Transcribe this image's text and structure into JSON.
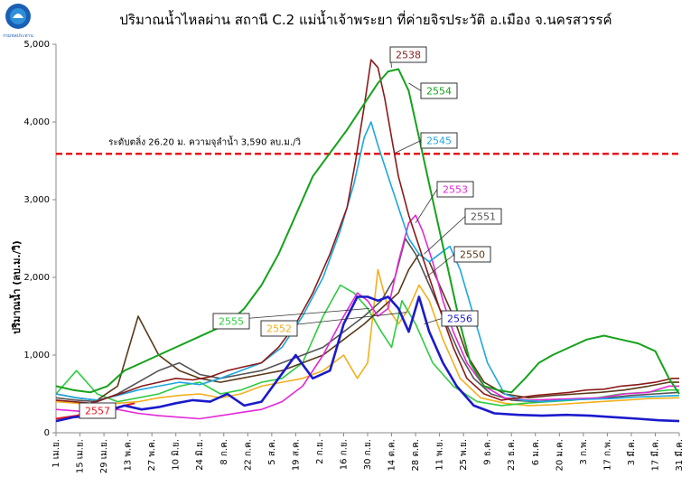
{
  "chart_data": {
    "type": "line",
    "title": "ปริมาณน้ำไหลผ่าน สถานี C.2 แม่น้ำเจ้าพระยา ที่ค่ายจิรประวัติ อ.เมือง จ.นครสวรรค์",
    "ylabel": "ปริมาณน้ำ (ลบ.ม./วิ)",
    "xlabel": "",
    "ylim": [
      0,
      5000
    ],
    "yticks": [
      "0",
      "1,000",
      "2,000",
      "3,000",
      "4,000",
      "5,000"
    ],
    "ytick_values": [
      0,
      1000,
      2000,
      3000,
      4000,
      5000
    ],
    "xticks": [
      "1 เม.ย.",
      "15 เม.ย.",
      "29 เม.ย.",
      "13 พ.ค.",
      "27 พ.ค.",
      "10 มิ.ย.",
      "24 มิ.ย.",
      "8 ก.ค.",
      "22 ก.ค.",
      "5 ส.ค.",
      "19 ส.ค.",
      "2 ก.ย.",
      "16 ก.ย.",
      "30 ก.ย.",
      "14 ต.ค.",
      "28 ต.ค.",
      "11 พ.ย.",
      "25 พ.ย.",
      "9 ธ.ค.",
      "23 ธ.ค.",
      "6 ม.ค.",
      "20 ม.ค.",
      "3 ก.พ.",
      "17 ก.พ.",
      "3 มี.ค.",
      "17 มี.ค.",
      "31 มี.ค."
    ],
    "x_days": [
      0,
      14,
      28,
      42,
      56,
      70,
      84,
      98,
      112,
      126,
      140,
      154,
      168,
      182,
      196,
      210,
      224,
      238,
      252,
      266,
      280,
      294,
      308,
      322,
      336,
      350,
      364
    ],
    "xlim": [
      0,
      364
    ],
    "reference_line": {
      "value": 3590,
      "label": "ระดับตลิ่ง 26.20 ม. ความจุลำน้ำ 3,590 ลบ.ม./วิ",
      "color": "#e8141c"
    },
    "grid": false,
    "series": [
      {
        "name": "2538",
        "color": "#8b1a1a",
        "width": 1.6,
        "x": [
          0,
          10,
          20,
          30,
          40,
          50,
          60,
          70,
          80,
          90,
          100,
          110,
          120,
          130,
          140,
          150,
          160,
          170,
          175,
          180,
          184,
          188,
          192,
          196,
          200,
          206,
          212,
          218,
          224,
          232,
          240,
          250,
          260,
          270,
          280,
          290,
          300,
          310,
          320,
          330,
          340,
          350,
          360,
          364
        ],
        "y": [
          420,
          400,
          380,
          450,
          520,
          600,
          650,
          700,
          680,
          720,
          800,
          850,
          900,
          1100,
          1400,
          1800,
          2300,
          2900,
          3500,
          4200,
          4800,
          4700,
          4300,
          3800,
          3300,
          2800,
          2400,
          2000,
          1600,
          1100,
          700,
          500,
          420,
          450,
          480,
          500,
          520,
          550,
          560,
          600,
          620,
          650,
          700,
          700
        ]
      },
      {
        "name": "2554",
        "color": "#16a21c",
        "width": 2.0,
        "x": [
          0,
          10,
          20,
          30,
          40,
          50,
          60,
          70,
          80,
          90,
          100,
          110,
          120,
          130,
          140,
          150,
          160,
          170,
          176,
          182,
          188,
          194,
          200,
          206,
          212,
          218,
          224,
          230,
          236,
          242,
          250,
          258,
          266,
          274,
          282,
          290,
          300,
          310,
          320,
          330,
          340,
          350,
          358,
          364
        ],
        "y": [
          600,
          550,
          520,
          600,
          800,
          900,
          1000,
          1100,
          1200,
          1300,
          1400,
          1600,
          1900,
          2300,
          2800,
          3300,
          3600,
          3900,
          4100,
          4300,
          4500,
          4650,
          4680,
          4400,
          3800,
          3200,
          2600,
          2000,
          1400,
          900,
          600,
          550,
          520,
          700,
          900,
          1000,
          1100,
          1200,
          1250,
          1200,
          1150,
          1050,
          700,
          500
        ]
      },
      {
        "name": "2545",
        "color": "#1ea7e1",
        "width": 1.6,
        "x": [
          0,
          12,
          24,
          36,
          48,
          60,
          72,
          84,
          96,
          108,
          120,
          132,
          144,
          156,
          166,
          174,
          180,
          184,
          188,
          194,
          200,
          206,
          212,
          218,
          224,
          230,
          236,
          244,
          252,
          262,
          272,
          284,
          296,
          310,
          324,
          338,
          352,
          364
        ],
        "y": [
          500,
          450,
          420,
          480,
          550,
          600,
          650,
          620,
          700,
          800,
          900,
          1100,
          1500,
          2000,
          2600,
          3200,
          3800,
          4000,
          3700,
          3300,
          2900,
          2500,
          2300,
          2200,
          2300,
          2400,
          2100,
          1500,
          900,
          500,
          420,
          400,
          420,
          430,
          440,
          460,
          470,
          480
        ]
      },
      {
        "name": "2553",
        "color": "#e22ad8",
        "width": 1.6,
        "x": [
          0,
          12,
          24,
          36,
          48,
          60,
          72,
          84,
          96,
          108,
          120,
          132,
          144,
          156,
          168,
          176,
          182,
          188,
          194,
          200,
          206,
          210,
          214,
          220,
          226,
          232,
          240,
          250,
          262,
          276,
          290,
          304,
          318,
          332,
          346,
          358,
          364
        ],
        "y": [
          300,
          280,
          260,
          300,
          250,
          220,
          200,
          180,
          220,
          260,
          300,
          400,
          600,
          1000,
          1500,
          1800,
          1700,
          1500,
          1600,
          2200,
          2700,
          2800,
          2600,
          2200,
          1700,
          1300,
          900,
          600,
          450,
          420,
          430,
          440,
          450,
          500,
          520,
          600,
          600
        ]
      },
      {
        "name": "2551",
        "color": "#555555",
        "width": 1.6,
        "x": [
          0,
          12,
          24,
          36,
          48,
          60,
          72,
          84,
          96,
          108,
          120,
          132,
          144,
          156,
          168,
          180,
          190,
          198,
          204,
          210,
          216,
          222,
          228,
          236,
          244,
          254,
          266,
          280,
          294,
          308,
          322,
          336,
          350,
          364
        ],
        "y": [
          450,
          420,
          400,
          500,
          650,
          800,
          900,
          750,
          700,
          750,
          800,
          900,
          1000,
          1100,
          1300,
          1500,
          1700,
          2000,
          2500,
          2300,
          2000,
          1700,
          1400,
          1000,
          700,
          500,
          420,
          400,
          420,
          430,
          450,
          480,
          500,
          520
        ]
      },
      {
        "name": "2550",
        "color": "#5a3a1a",
        "width": 1.6,
        "x": [
          0,
          12,
          24,
          36,
          48,
          60,
          72,
          84,
          96,
          108,
          120,
          132,
          144,
          156,
          168,
          180,
          190,
          200,
          206,
          212,
          218,
          224,
          232,
          240,
          250,
          262,
          276,
          290,
          304,
          318,
          332,
          346,
          358,
          364
        ],
        "y": [
          500,
          450,
          420,
          600,
          1500,
          1000,
          800,
          700,
          650,
          700,
          750,
          800,
          900,
          1000,
          1200,
          1400,
          1600,
          1800,
          2100,
          2300,
          2200,
          1900,
          1500,
          1000,
          650,
          500,
          450,
          480,
          500,
          520,
          550,
          600,
          650,
          650
        ]
      },
      {
        "name": "2552",
        "color": "#f2b01e",
        "width": 1.6,
        "x": [
          0,
          12,
          24,
          36,
          48,
          60,
          72,
          84,
          96,
          108,
          120,
          132,
          144,
          156,
          168,
          176,
          182,
          188,
          194,
          200,
          206,
          212,
          218,
          226,
          236,
          248,
          262,
          276,
          290,
          304,
          318,
          332,
          346,
          364
        ],
        "y": [
          400,
          380,
          350,
          380,
          400,
          450,
          480,
          500,
          450,
          500,
          600,
          650,
          700,
          800,
          1000,
          700,
          900,
          2100,
          1600,
          1400,
          1600,
          1900,
          1700,
          1200,
          700,
          450,
          380,
          350,
          360,
          380,
          400,
          420,
          440,
          450
        ]
      },
      {
        "name": "2555",
        "color": "#2ecc40",
        "width": 1.6,
        "x": [
          0,
          12,
          24,
          36,
          48,
          60,
          72,
          84,
          96,
          108,
          120,
          132,
          144,
          156,
          166,
          174,
          182,
          190,
          196,
          202,
          210,
          220,
          232,
          246,
          260,
          274,
          288,
          302,
          316,
          330,
          344,
          358,
          364
        ],
        "y": [
          500,
          800,
          500,
          400,
          450,
          500,
          600,
          650,
          500,
          550,
          650,
          700,
          900,
          1500,
          1900,
          1800,
          1600,
          1300,
          1100,
          1700,
          1400,
          900,
          600,
          400,
          350,
          380,
          400,
          420,
          450,
          500,
          520,
          550,
          550
        ]
      },
      {
        "name": "2556",
        "color": "#1a1acc",
        "width": 2.6,
        "x": [
          0,
          10,
          20,
          30,
          40,
          50,
          60,
          70,
          80,
          90,
          100,
          110,
          120,
          130,
          140,
          150,
          160,
          168,
          176,
          182,
          188,
          194,
          200,
          206,
          212,
          218,
          226,
          234,
          244,
          256,
          270,
          284,
          298,
          312,
          326,
          340,
          352,
          364
        ],
        "y": [
          150,
          200,
          220,
          280,
          350,
          300,
          330,
          380,
          420,
          400,
          500,
          350,
          400,
          700,
          1000,
          700,
          800,
          1400,
          1750,
          1750,
          1700,
          1750,
          1600,
          1300,
          1750,
          1300,
          900,
          600,
          350,
          250,
          230,
          220,
          230,
          220,
          200,
          180,
          160,
          150
        ]
      },
      {
        "name": "2557",
        "color": "#e8141c",
        "width": 2.0,
        "x": [
          0,
          6,
          12,
          18,
          24,
          30,
          34,
          38,
          42,
          46
        ],
        "y": [
          180,
          200,
          220,
          250,
          280,
          300,
          320,
          340,
          360,
          380
        ]
      }
    ],
    "series_labels": [
      {
        "series": "2538",
        "text": "2538",
        "color": "#8b1a1a"
      },
      {
        "series": "2554",
        "text": "2554",
        "color": "#16a21c"
      },
      {
        "series": "2545",
        "text": "2545",
        "color": "#1ea7e1"
      },
      {
        "series": "2553",
        "text": "2553",
        "color": "#e22ad8"
      },
      {
        "series": "2551",
        "text": "2551",
        "color": "#555555"
      },
      {
        "series": "2550",
        "text": "2550",
        "color": "#5a3a1a"
      },
      {
        "series": "2552",
        "text": "2552",
        "color": "#f2b01e"
      },
      {
        "series": "2555",
        "text": "2555",
        "color": "#2ecc40"
      },
      {
        "series": "2556",
        "text": "2556",
        "color": "#1a1acc"
      },
      {
        "series": "2557",
        "text": "2557",
        "color": "#e8141c"
      }
    ]
  },
  "logo": {
    "caption": "กรมชลประทาน",
    "color": "#1a5fb4"
  }
}
